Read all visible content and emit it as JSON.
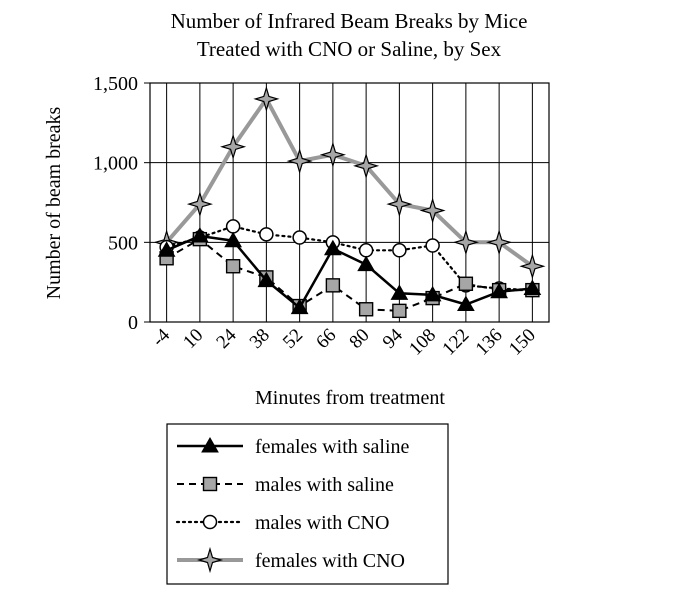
{
  "chart_data": {
    "type": "line",
    "title_lines": [
      "Number of Infrared Beam Breaks by Mice",
      "Treated with CNO or Saline, by Sex"
    ],
    "xlabel": "Minutes from treatment",
    "ylabel": "Number of beam breaks",
    "x": [
      -4,
      10,
      24,
      38,
      52,
      66,
      80,
      94,
      108,
      122,
      136,
      150
    ],
    "x_tick_labels": [
      "-4",
      "10",
      "24",
      "38",
      "52",
      "66",
      "80",
      "94",
      "108",
      "122",
      "136",
      "150"
    ],
    "ylim": [
      0,
      1500
    ],
    "y_ticks": [
      0,
      500,
      1000,
      1500
    ],
    "y_tick_labels": [
      "0",
      "500",
      "1,000",
      "1,500"
    ],
    "grid": true,
    "legend_position": "bottom-center",
    "series": [
      {
        "name": "females with saline",
        "marker": "triangle",
        "line": "solid",
        "color": "#000000",
        "fill": "#000000",
        "values": [
          450,
          540,
          510,
          260,
          90,
          460,
          360,
          180,
          170,
          110,
          190,
          210
        ]
      },
      {
        "name": "males with saline",
        "marker": "square",
        "line": "dashed",
        "color": "#000000",
        "fill": "#a6a6a6",
        "values": [
          400,
          520,
          350,
          280,
          100,
          230,
          80,
          70,
          150,
          240,
          200,
          200
        ]
      },
      {
        "name": "males with CNO",
        "marker": "circle",
        "line": "dotted",
        "color": "#000000",
        "fill": "#ffffff",
        "values": [
          470,
          530,
          600,
          550,
          530,
          500,
          450,
          450,
          480,
          230,
          210,
          200
        ]
      },
      {
        "name": "females with CNO",
        "marker": "star",
        "line": "solid-thick",
        "color": "#999999",
        "fill": "#a6a6a6",
        "values": [
          500,
          740,
          1100,
          1400,
          1010,
          1050,
          980,
          740,
          700,
          500,
          500,
          350
        ]
      }
    ]
  }
}
